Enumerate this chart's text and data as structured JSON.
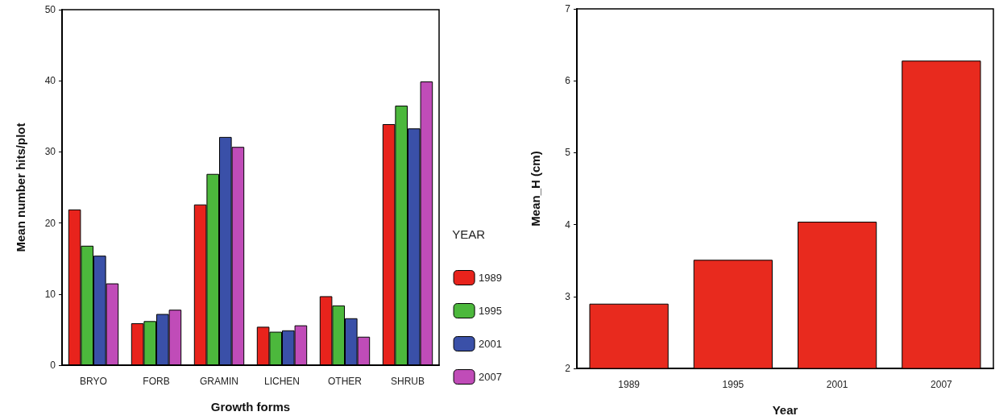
{
  "chart_data": [
    {
      "type": "bar",
      "xlabel": "Growth forms",
      "ylabel": "Mean number hits/plot",
      "legend_title": "YEAR",
      "legend": "right",
      "categories": [
        "BRYO",
        "FORB",
        "GRAMIN",
        "LICHEN",
        "OTHER",
        "SHRUB"
      ],
      "ylim": [
        0,
        50
      ],
      "yticks": [
        0,
        10,
        20,
        30,
        40,
        50
      ],
      "grid": false,
      "series": [
        {
          "name": "1989",
          "color": "#e8231c",
          "values": [
            21.9,
            5.9,
            22.6,
            5.4,
            9.7,
            33.9
          ]
        },
        {
          "name": "1995",
          "color": "#4cb83c",
          "values": [
            16.8,
            6.2,
            26.9,
            4.7,
            8.4,
            36.5
          ]
        },
        {
          "name": "2001",
          "color": "#3a50a8",
          "values": [
            15.4,
            7.2,
            32.1,
            4.9,
            6.6,
            33.3
          ]
        },
        {
          "name": "2007",
          "color": "#c04cb8",
          "values": [
            11.5,
            7.8,
            30.7,
            5.6,
            4.0,
            39.9
          ]
        }
      ]
    },
    {
      "type": "bar",
      "xlabel": "Year",
      "ylabel": "Mean_H (cm)",
      "legend": false,
      "categories": [
        "1989",
        "1995",
        "2001",
        "2007"
      ],
      "ylim": [
        2,
        7
      ],
      "yticks": [
        2,
        3,
        4,
        5,
        6,
        7
      ],
      "grid": false,
      "series": [
        {
          "color": "#e82a1e",
          "values": [
            2.9,
            3.51,
            4.04,
            6.28
          ]
        }
      ]
    }
  ]
}
